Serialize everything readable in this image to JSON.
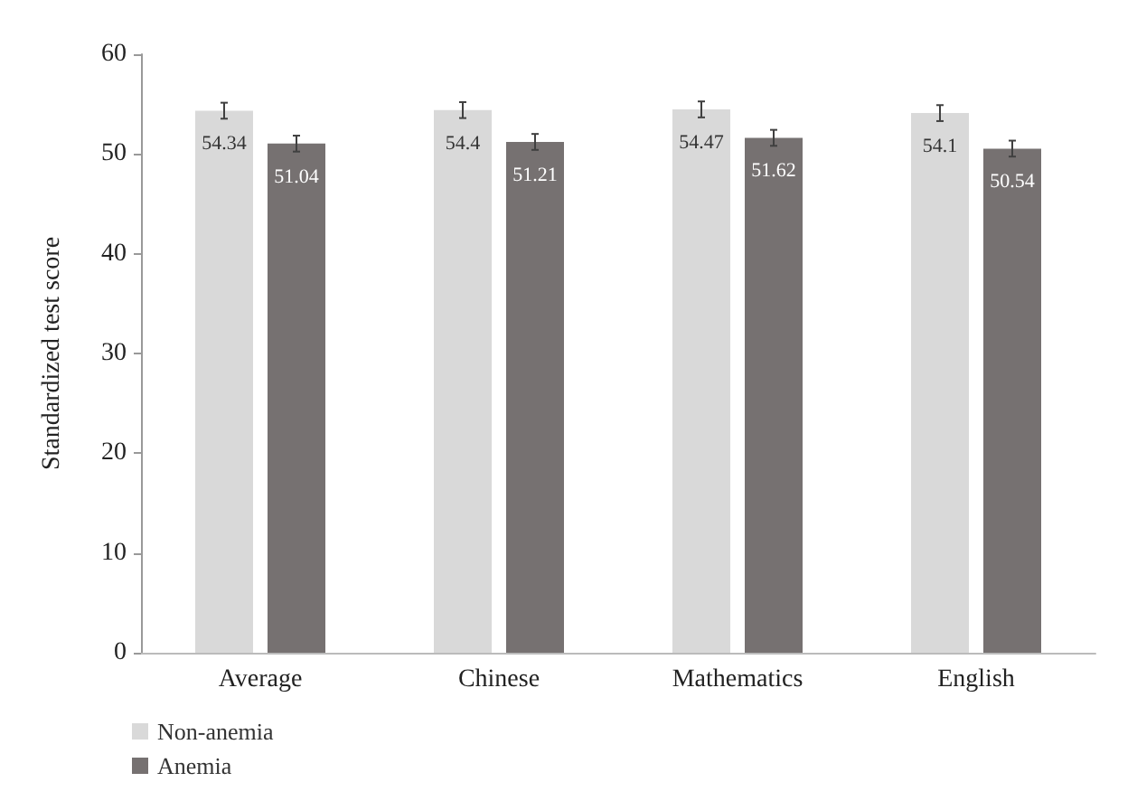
{
  "chart_data": {
    "type": "bar",
    "ylabel": "Standardized test score",
    "categories": [
      "Average",
      "Chinese",
      "Mathematics",
      "English"
    ],
    "series": [
      {
        "name": "Non-anemia",
        "color": "#d9d9d9",
        "values": [
          54.34,
          54.4,
          54.47,
          54.1
        ],
        "errors": [
          0.8,
          0.8,
          0.8,
          0.8
        ]
      },
      {
        "name": "Anemia",
        "color": "#767171",
        "values": [
          51.04,
          51.21,
          51.62,
          50.54
        ],
        "errors": [
          0.8,
          0.8,
          0.8,
          0.8
        ]
      }
    ],
    "ylim": [
      0,
      60
    ],
    "yticks": [
      0,
      10,
      20,
      30,
      40,
      50,
      60
    ],
    "grid": false,
    "legend": "bottom left",
    "data_labels": true
  }
}
